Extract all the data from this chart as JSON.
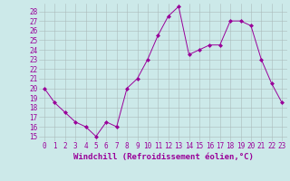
{
  "x": [
    0,
    1,
    2,
    3,
    4,
    5,
    6,
    7,
    8,
    9,
    10,
    11,
    12,
    13,
    14,
    15,
    16,
    17,
    18,
    19,
    20,
    21,
    22,
    23
  ],
  "y": [
    20,
    18.5,
    17.5,
    16.5,
    16,
    15,
    16.5,
    16,
    20,
    21,
    23,
    25.5,
    27.5,
    28.5,
    23.5,
    24,
    24.5,
    24.5,
    27,
    27,
    26.5,
    23,
    20.5,
    18.5
  ],
  "xlabel": "Windchill (Refroidissement éolien,°C)",
  "xlim": [
    -0.5,
    23.5
  ],
  "ylim": [
    14.5,
    28.8
  ],
  "yticks": [
    15,
    16,
    17,
    18,
    19,
    20,
    21,
    22,
    23,
    24,
    25,
    26,
    27,
    28
  ],
  "xticks": [
    0,
    1,
    2,
    3,
    4,
    5,
    6,
    7,
    8,
    9,
    10,
    11,
    12,
    13,
    14,
    15,
    16,
    17,
    18,
    19,
    20,
    21,
    22,
    23
  ],
  "line_color": "#990099",
  "marker": "D",
  "marker_size": 2,
  "bg_color": "#cce9e9",
  "grid_color": "#aabbbb",
  "xlabel_fontsize": 6.5,
  "tick_fontsize": 5.5
}
